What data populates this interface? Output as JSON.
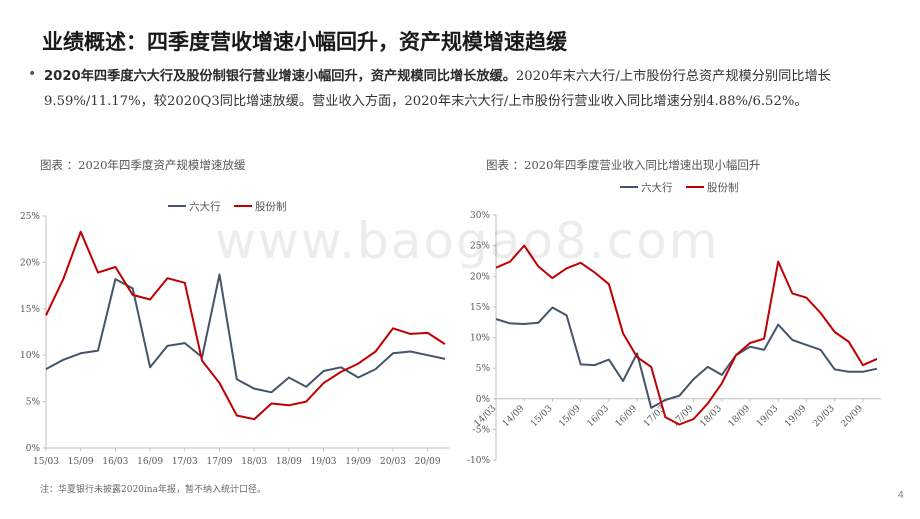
{
  "page": {
    "title": "业绩概述：四季度营收增速小幅回升，资产规模增速趋缓",
    "bullet_bold": "2020年四季度六大行及股份制银行营业增速小幅回升，资产规模同比增长放缓。",
    "bullet_rest": "2020年末六大行/上市股份行总资产规模分别同比增长9.59%/11.17%，较2020Q3同比增速放缓。营业收入方面，2020年末六大行/上市股份行营业收入同比增速分别4.88%/6.52%。",
    "note": "注：华夏银行未披露2020ina年报，暂不纳入统计口径。",
    "page_number": "4",
    "watermark": "www.baogao8.com"
  },
  "colors": {
    "big6": "#44546a",
    "joint": "#c00000",
    "axis": "#bfbfbf"
  },
  "chart_data": [
    {
      "type": "line",
      "caption": "图表 ：2020年四季度资产规模增速放缓",
      "y_ticks": [
        "0%",
        "5%",
        "10%",
        "15%",
        "20%",
        "25%"
      ],
      "ylim": [
        0,
        25
      ],
      "x_tick_labels": [
        "15/03",
        "15/09",
        "16/03",
        "16/09",
        "17/03",
        "17/09",
        "18/03",
        "18/09",
        "19/03",
        "19/09",
        "20/03",
        "20/09"
      ],
      "x_tick_index": [
        0,
        2,
        4,
        6,
        8,
        10,
        12,
        14,
        16,
        18,
        20,
        22
      ],
      "n_points": 24,
      "series": [
        {
          "name": "六大行",
          "color": "#44546a",
          "values": [
            8.5,
            9.5,
            10.2,
            10.5,
            18.2,
            17.2,
            8.7,
            11.0,
            11.3,
            9.8,
            18.7,
            7.4,
            6.4,
            6.0,
            7.6,
            6.6,
            8.3,
            8.7,
            7.6,
            8.5,
            10.2,
            10.4,
            10.0,
            9.6
          ]
        },
        {
          "name": "股份制",
          "color": "#c00000",
          "values": [
            14.3,
            18.2,
            23.3,
            18.9,
            19.5,
            16.5,
            16.0,
            18.3,
            17.8,
            9.4,
            7.0,
            3.5,
            3.1,
            4.8,
            4.6,
            5.0,
            7.0,
            8.2,
            9.1,
            10.4,
            12.9,
            12.3,
            12.4,
            11.2
          ]
        }
      ]
    },
    {
      "type": "line",
      "caption": "图表 ：2020年四季度营业收入同比增速出现小幅回升",
      "y_ticks": [
        "-10%",
        "-5%",
        "0%",
        "5%",
        "10%",
        "15%",
        "20%",
        "25%",
        "30%"
      ],
      "ylim": [
        -10,
        30
      ],
      "x_tick_labels": [
        "14/03",
        "14/09",
        "15/03",
        "15/09",
        "16/03",
        "16/09",
        "17/03",
        "17/09",
        "18/03",
        "18/09",
        "19/03",
        "19/09",
        "20/03",
        "20/09"
      ],
      "x_tick_index": [
        0,
        2,
        4,
        6,
        8,
        10,
        12,
        14,
        16,
        18,
        20,
        22,
        24,
        26
      ],
      "n_points": 28,
      "series": [
        {
          "name": "六大行",
          "color": "#44546a",
          "values": [
            13.0,
            12.3,
            12.2,
            12.4,
            14.9,
            13.6,
            5.6,
            5.5,
            6.4,
            2.9,
            7.4,
            -1.5,
            -0.2,
            0.5,
            3.2,
            5.2,
            3.9,
            7.1,
            8.5,
            8.0,
            12.1,
            9.6,
            8.8,
            8.0,
            4.8,
            4.4,
            4.4,
            4.9
          ]
        },
        {
          "name": "股份制",
          "color": "#c00000",
          "values": [
            21.4,
            22.4,
            25.0,
            21.6,
            19.7,
            21.3,
            22.2,
            20.6,
            18.7,
            10.7,
            6.8,
            5.2,
            -3.0,
            -4.2,
            -3.3,
            -0.8,
            2.5,
            7.1,
            9.1,
            9.8,
            22.4,
            17.2,
            16.5,
            14.0,
            10.9,
            9.3,
            5.5,
            6.5
          ]
        }
      ]
    }
  ]
}
